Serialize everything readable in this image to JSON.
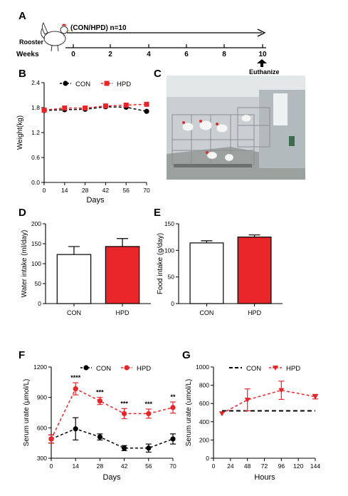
{
  "panel_labels": {
    "A": "A",
    "B": "B",
    "C": "C",
    "D": "D",
    "E": "E",
    "F": "F",
    "G": "G"
  },
  "timeline": {
    "animal_label": "Rooster",
    "group_text": "(CON/HPD) n=10",
    "weeks_label": "Weeks",
    "ticks": [
      "0",
      "2",
      "4",
      "6",
      "8",
      "10"
    ],
    "end_event": "Euthanize"
  },
  "chart_data": [
    {
      "panel": "B",
      "type": "line",
      "ylabel": "Weight(kg)",
      "xlabel": "Days",
      "x": [
        0,
        14,
        28,
        42,
        56,
        70
      ],
      "ylim": [
        0,
        2.4
      ],
      "yticks": [
        "0.0",
        "0.6",
        "1.2",
        "1.8",
        "2.4"
      ],
      "xticks": [
        "0",
        "14",
        "28",
        "42",
        "56",
        "70"
      ],
      "legend": "top",
      "series": [
        {
          "name": "CON",
          "values": [
            1.73,
            1.75,
            1.76,
            1.82,
            1.81,
            1.71
          ],
          "color": "#000000",
          "marker": "circle"
        },
        {
          "name": "HPD",
          "values": [
            1.74,
            1.79,
            1.79,
            1.84,
            1.86,
            1.88
          ],
          "color": "#e8262a",
          "marker": "square"
        }
      ]
    },
    {
      "panel": "D",
      "type": "bar",
      "ylabel": "Water intake (ml/day)",
      "categories": [
        "CON",
        "HPD"
      ],
      "values": [
        123,
        143
      ],
      "errors": [
        20,
        20
      ],
      "colors": [
        "#ffffff",
        "#e8262a"
      ],
      "ylim": [
        0,
        200
      ],
      "yticks": [
        "0",
        "50",
        "100",
        "150",
        "200"
      ]
    },
    {
      "panel": "E",
      "type": "bar",
      "ylabel": "Food intake (g/day)",
      "categories": [
        "CON",
        "HPD"
      ],
      "values": [
        114,
        125
      ],
      "errors": [
        4,
        4
      ],
      "colors": [
        "#ffffff",
        "#e8262a"
      ],
      "ylim": [
        0,
        150
      ],
      "yticks": [
        "0",
        "50",
        "100",
        "150"
      ]
    },
    {
      "panel": "F",
      "type": "line",
      "ylabel": "Serum urate (μmol/L)",
      "xlabel": "Days",
      "x": [
        0,
        14,
        28,
        42,
        56,
        70
      ],
      "ylim": [
        300,
        1200
      ],
      "yticks": [
        "300",
        "600",
        "900",
        "1200"
      ],
      "xticks": [
        "0",
        "14",
        "28",
        "42",
        "56",
        "70"
      ],
      "legend": "top",
      "series": [
        {
          "name": "CON",
          "values": [
            490,
            590,
            510,
            400,
            400,
            490
          ],
          "errors": [
            40,
            110,
            30,
            25,
            40,
            50
          ],
          "color": "#000000",
          "marker": "circle"
        },
        {
          "name": "HPD",
          "values": [
            490,
            985,
            865,
            740,
            740,
            800
          ],
          "errors": [
            40,
            60,
            35,
            50,
            45,
            55
          ],
          "color": "#e8262a",
          "marker": "circle"
        }
      ],
      "significance": [
        "",
        "****",
        "***",
        "***",
        "***",
        "**"
      ]
    },
    {
      "panel": "G",
      "type": "line",
      "ylabel": "Serum urate (umol/L)",
      "xlabel": "Hours",
      "x": [
        12,
        48,
        96,
        144
      ],
      "xlim": [
        0,
        144
      ],
      "ylim": [
        0,
        1000
      ],
      "yticks": [
        "0",
        "200",
        "400",
        "600",
        "800",
        "1000"
      ],
      "xticks": [
        "0",
        "24",
        "48",
        "72",
        "96",
        "120",
        "144"
      ],
      "legend": "top",
      "reference_line": {
        "name": "CON",
        "value": 520,
        "color": "#000000"
      },
      "series": [
        {
          "name": "HPD",
          "values": [
            490,
            640,
            745,
            675
          ],
          "errors": [
            0,
            120,
            100,
            25
          ],
          "color": "#e8262a",
          "marker": "triangle-down"
        }
      ]
    }
  ]
}
